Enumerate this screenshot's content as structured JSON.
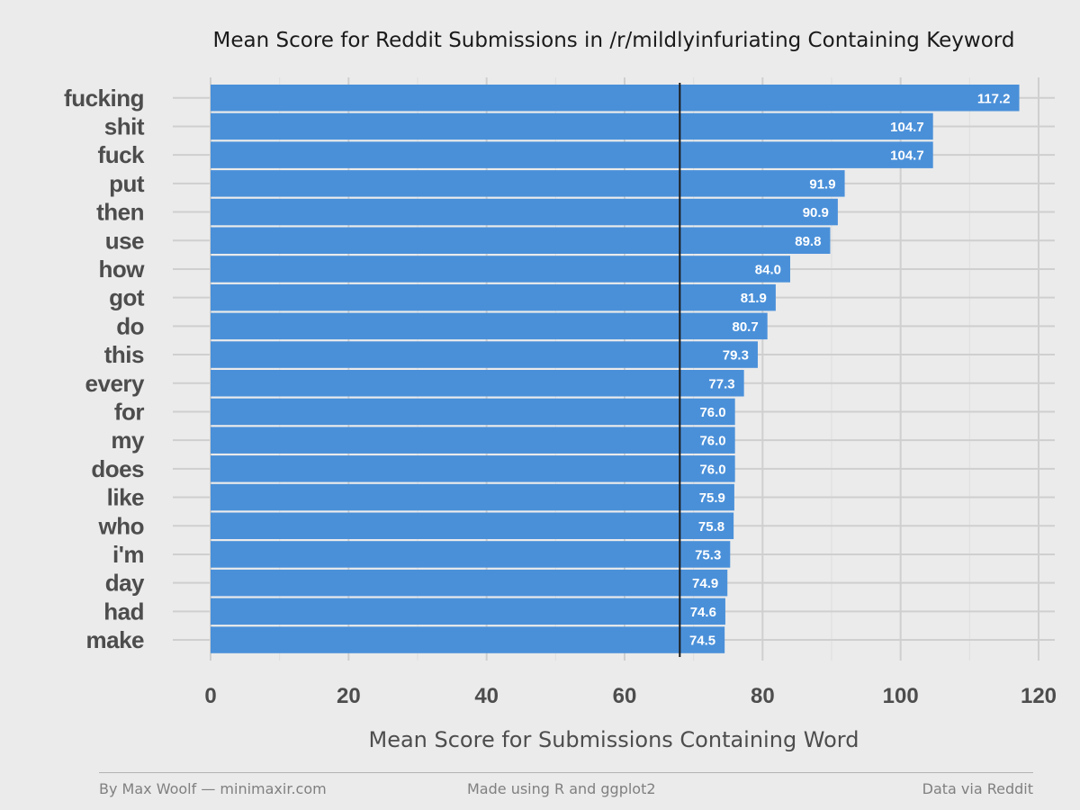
{
  "chart_data": {
    "type": "bar",
    "orientation": "horizontal",
    "title": "Mean Score for Reddit Submissions in /r/mildlyinfuriating Containing Keyword",
    "xlabel": "Mean Score for Submissions Containing Word",
    "ylabel": "",
    "xlim": [
      0,
      120
    ],
    "x_ticks": [
      0,
      20,
      40,
      60,
      80,
      100,
      120
    ],
    "reference_line": 68,
    "bar_color": "#4a90d9",
    "grid": true,
    "categories": [
      "fucking",
      "shit",
      "fuck",
      "put",
      "then",
      "use",
      "how",
      "got",
      "do",
      "this",
      "every",
      "for",
      "my",
      "does",
      "like",
      "who",
      "i'm",
      "day",
      "had",
      "make"
    ],
    "values": [
      117.2,
      104.7,
      104.7,
      91.9,
      90.9,
      89.8,
      84.0,
      81.9,
      80.7,
      79.3,
      77.3,
      76.0,
      76.0,
      76.0,
      75.9,
      75.8,
      75.3,
      74.9,
      74.6,
      74.5
    ],
    "value_labels": [
      "117.2",
      "104.7",
      "104.7",
      "91.9",
      "90.9",
      "89.8",
      "84.0",
      "81.9",
      "80.7",
      "79.3",
      "77.3",
      "76.0",
      "76.0",
      "76.0",
      "75.9",
      "75.8",
      "75.3",
      "74.9",
      "74.6",
      "74.5"
    ]
  },
  "footer": {
    "left": "By Max Woolf — minimaxir.com",
    "center": "Made using R and ggplot2",
    "right": "Data via Reddit"
  }
}
